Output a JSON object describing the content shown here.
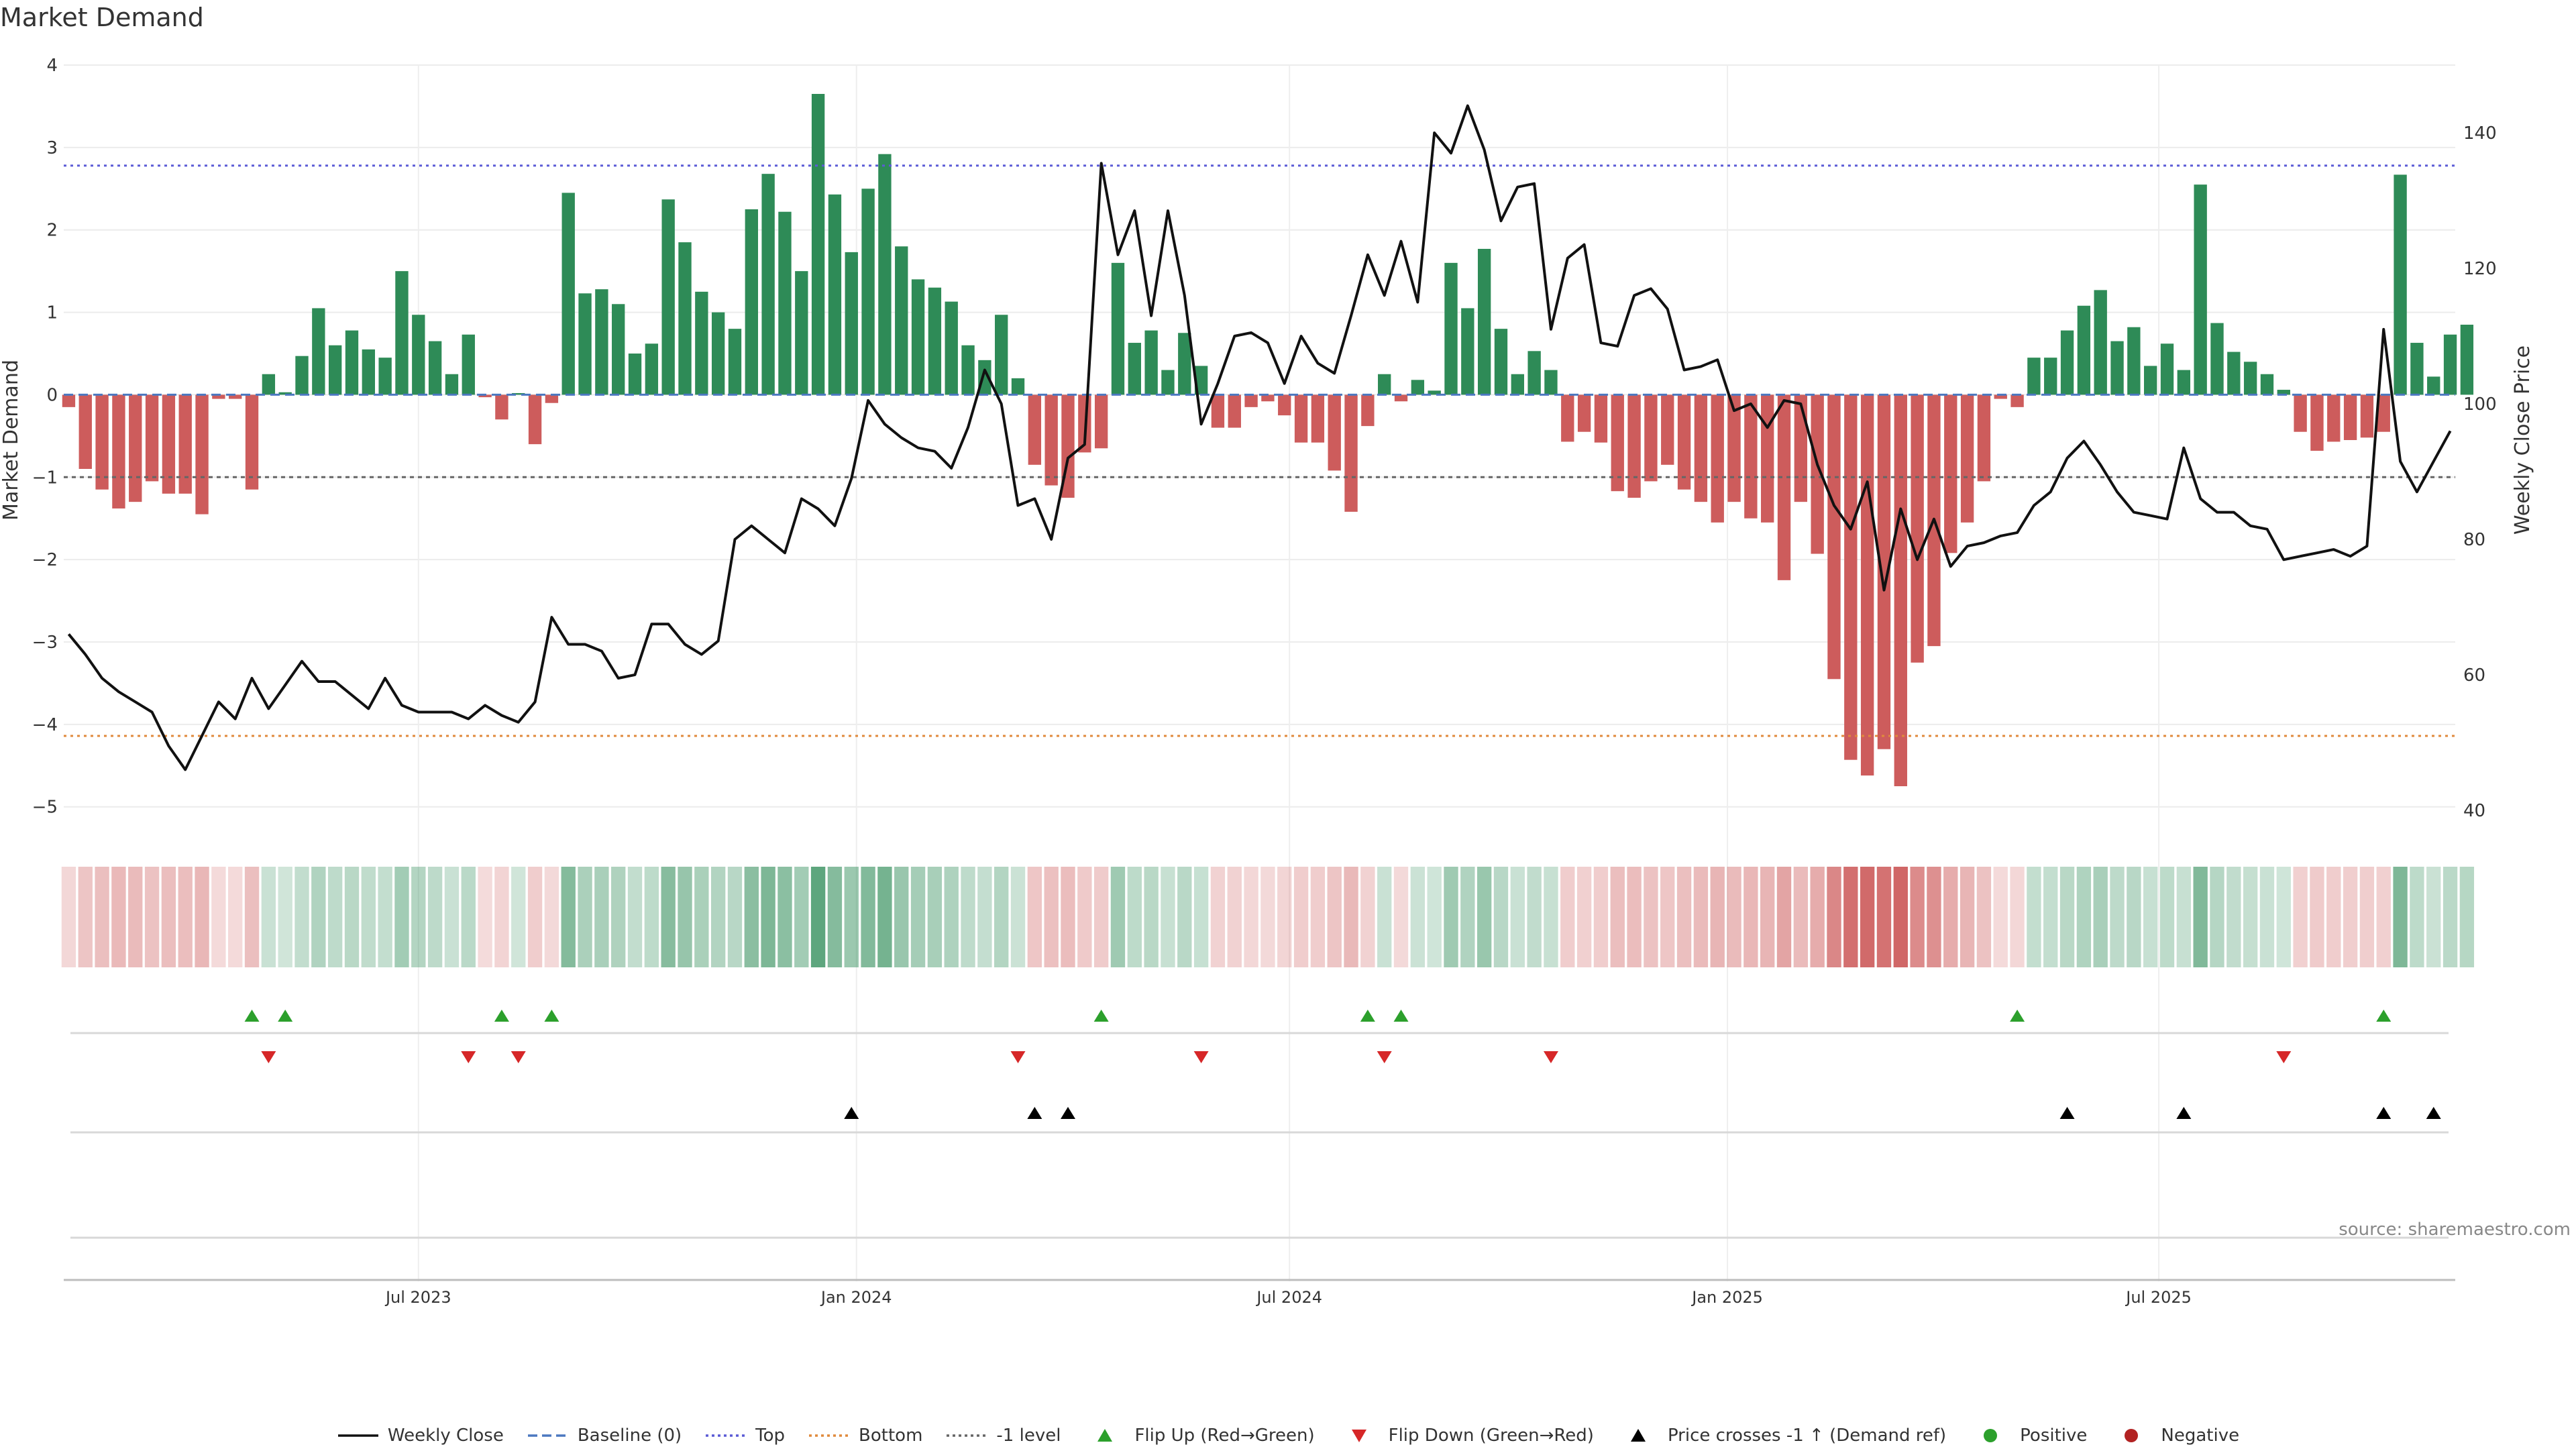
{
  "title": "Market Demand",
  "source": "source: sharemaestro.com",
  "legend": [
    {
      "label": "Weekly Close",
      "symbol": "line",
      "color": "#111111"
    },
    {
      "label": "Baseline (0)",
      "symbol": "dash",
      "color": "#4c78c0"
    },
    {
      "label": "Top",
      "symbol": "dot",
      "color": "#5b5bd6"
    },
    {
      "label": "Bottom",
      "symbol": "dot",
      "color": "#e08a3c"
    },
    {
      "label": "-1 level",
      "symbol": "dot",
      "color": "#666666"
    },
    {
      "label": "Flip Up (Red→Green)",
      "symbol": "tri-up",
      "color": "#2ca02c"
    },
    {
      "label": "Flip Down (Green→Red)",
      "symbol": "tri-down",
      "color": "#d62728"
    },
    {
      "label": "Price crosses -1 ↑ (Demand ref)",
      "symbol": "tri-up",
      "color": "#000000"
    },
    {
      "label": "Positive",
      "symbol": "circle",
      "color": "#2ca02c"
    },
    {
      "label": "Negative",
      "symbol": "circle",
      "color": "#b22222"
    }
  ],
  "colors": {
    "positive_bar": "#2e8b57",
    "negative_bar": "#cd5c5c",
    "price_line": "#111111",
    "top_line": "#5b5bd6",
    "bottom_line": "#e08a3c",
    "minus1_line": "#666666",
    "baseline": "#4c78c0",
    "flip_up": "#2ca02c",
    "flip_down": "#d62728",
    "cross_marker": "#000000"
  },
  "chart_data": {
    "type": "bar",
    "ylabel": "Market Demand",
    "y2label": "Weekly Close Price",
    "ylim": [
      -5.1,
      4.0
    ],
    "y2lim": [
      39.3,
      150.0
    ],
    "yticks": [
      "4",
      "3",
      "2",
      "1",
      "0",
      "−1",
      "−2",
      "−3",
      "−4",
      "−5"
    ],
    "yticks_values": [
      4,
      3,
      2,
      1,
      0,
      -1,
      -2,
      -3,
      -4,
      -5
    ],
    "y2ticks": [
      "140",
      "120",
      "100",
      "80",
      "60",
      "40"
    ],
    "y2ticks_values": [
      140,
      120,
      100,
      80,
      60,
      40
    ],
    "xlim_week_index": [
      -0.3,
      143.3
    ],
    "xticks": [
      {
        "label": "Jul 2023",
        "week_index": 21.0
      },
      {
        "label": "Jan 2024",
        "week_index": 47.3
      },
      {
        "label": "Jul 2024",
        "week_index": 73.3
      },
      {
        "label": "Jan 2025",
        "week_index": 99.6
      },
      {
        "label": "Jul 2025",
        "week_index": 125.5
      }
    ],
    "reference_lines": {
      "top": 2.78,
      "bottom": -4.14,
      "minus1": -1.0,
      "baseline": 0
    },
    "demand": [
      -0.15,
      -0.9,
      -1.15,
      -1.38,
      -1.3,
      -1.05,
      -1.2,
      -1.2,
      -1.45,
      -0.05,
      -0.05,
      -1.15,
      0.25,
      0.03,
      0.47,
      1.05,
      0.6,
      0.78,
      0.55,
      0.45,
      1.5,
      0.97,
      0.65,
      0.25,
      0.73,
      -0.03,
      -0.3,
      0.02,
      -0.6,
      -0.1,
      2.45,
      1.23,
      1.28,
      1.1,
      0.5,
      0.62,
      2.37,
      1.85,
      1.25,
      1.0,
      0.8,
      2.25,
      2.68,
      2.22,
      1.5,
      3.65,
      2.43,
      1.73,
      2.5,
      2.92,
      1.8,
      1.4,
      1.3,
      1.13,
      0.6,
      0.42,
      0.97,
      0.2,
      -0.85,
      -1.1,
      -1.25,
      -0.7,
      -0.65,
      1.6,
      0.63,
      0.78,
      0.3,
      0.75,
      0.35,
      -0.4,
      -0.4,
      -0.15,
      -0.08,
      -0.25,
      -0.58,
      -0.58,
      -0.92,
      -1.42,
      -0.38,
      0.25,
      -0.08,
      0.18,
      0.05,
      1.6,
      1.05,
      1.77,
      0.8,
      0.25,
      0.53,
      0.3,
      -0.57,
      -0.45,
      -0.58,
      -1.17,
      -1.25,
      -1.05,
      -0.85,
      -1.15,
      -1.3,
      -1.55,
      -1.3,
      -1.5,
      -1.55,
      -2.25,
      -1.3,
      -1.93,
      -3.45,
      -4.43,
      -4.62,
      -4.3,
      -4.75,
      -3.25,
      -3.05,
      -1.92,
      -1.55,
      -1.05,
      -0.05,
      -0.15,
      0.45,
      0.45,
      0.78,
      1.08,
      1.27,
      0.65,
      0.82,
      0.35,
      0.62,
      0.3,
      2.55,
      0.87,
      0.52,
      0.4,
      0.25,
      0.06,
      -0.45,
      -0.68,
      -0.57,
      -0.55,
      -0.52,
      -0.45,
      2.67,
      0.63,
      0.22,
      0.73,
      0.85
    ],
    "weekly_close": [
      66,
      63,
      59.5,
      57.5,
      56,
      54.5,
      49.5,
      46,
      51,
      56,
      53.5,
      59.5,
      55,
      58.5,
      62,
      59,
      59,
      57,
      55,
      59.5,
      55.5,
      54.5,
      54.5,
      54.5,
      53.5,
      55.5,
      54,
      53,
      56,
      68.5,
      64.5,
      64.5,
      63.5,
      59.5,
      60,
      67.5,
      67.5,
      64.5,
      63,
      65,
      80,
      82,
      80,
      78,
      86,
      84.5,
      82,
      89,
      100.5,
      97,
      95,
      93.5,
      93,
      90.5,
      96.5,
      105,
      100,
      85,
      86,
      80,
      92,
      94,
      135.5,
      122,
      128.5,
      113,
      128.5,
      116,
      97,
      103,
      110,
      110.5,
      109,
      103,
      110,
      106,
      104.5,
      113,
      122,
      116,
      124,
      115,
      140,
      137,
      144,
      137.5,
      127,
      132,
      132.5,
      111,
      121.5,
      123.5,
      109,
      108.5,
      116,
      117,
      114,
      105,
      105.5,
      106.5,
      99,
      100,
      96.5,
      100.5,
      100,
      91,
      85,
      81.5,
      88.5,
      72.5,
      84.5,
      77,
      83,
      76,
      79,
      79.5,
      80.5,
      81,
      85,
      87,
      92,
      94.5,
      91,
      87,
      84,
      83.5,
      83,
      93.5,
      86,
      84,
      84,
      82,
      81.5,
      77,
      77.5,
      78,
      78.5,
      77.5,
      79,
      111,
      91.5,
      87,
      91.5,
      96
    ],
    "flip_up_weeks": [
      11,
      13,
      26,
      29,
      62,
      78,
      80,
      117,
      139
    ],
    "flip_down_weeks": [
      12,
      24,
      27,
      57,
      68,
      79,
      89,
      133
    ],
    "price_cross_weeks": [
      47,
      58,
      60,
      120,
      127,
      139,
      142
    ]
  }
}
